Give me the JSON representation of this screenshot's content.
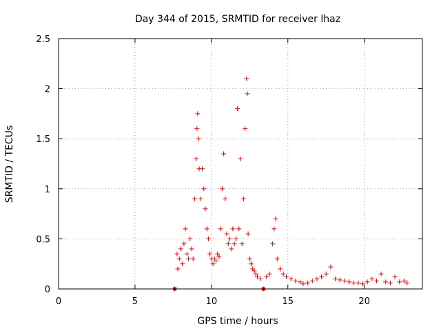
{
  "chart_data": {
    "type": "scatter",
    "title": "Day 344 of 2015, SRMTID for receiver lhaz",
    "xlabel": "GPS time / hours",
    "ylabel": "SRMTID / TECUs",
    "xlim": [
      0,
      23.8
    ],
    "ylim": [
      0,
      2.5
    ],
    "xticks": [
      0,
      5,
      10,
      15,
      20
    ],
    "xtick_labels": [
      "0",
      "5",
      "10",
      "15",
      "20"
    ],
    "yticks": [
      0,
      0.5,
      1,
      1.5,
      2,
      2.5
    ],
    "ytick_labels": [
      "0",
      "0.5",
      "1",
      "1.5",
      "2",
      "2.5"
    ],
    "grid": true,
    "marker": "+",
    "color": "#e00000",
    "series": [
      {
        "name": "SRMTID",
        "x": [
          7.6,
          7.75,
          7.8,
          7.9,
          8.0,
          8.1,
          8.2,
          8.3,
          8.4,
          8.5,
          8.6,
          8.7,
          8.8,
          8.9,
          9.0,
          9.05,
          9.1,
          9.15,
          9.2,
          9.3,
          9.4,
          9.5,
          9.6,
          9.7,
          9.8,
          9.9,
          10.0,
          10.1,
          10.2,
          10.3,
          10.4,
          10.5,
          10.6,
          10.7,
          10.8,
          10.9,
          11.0,
          11.1,
          11.2,
          11.3,
          11.4,
          11.5,
          11.6,
          11.7,
          11.8,
          11.9,
          12.0,
          12.1,
          12.2,
          12.3,
          12.35,
          12.4,
          12.5,
          12.6,
          12.7,
          12.8,
          12.9,
          13.0,
          13.2,
          13.4,
          13.6,
          13.8,
          14.0,
          14.1,
          14.2,
          14.3,
          14.5,
          14.7,
          14.9,
          15.2,
          15.5,
          15.8,
          16.0,
          16.3,
          16.6,
          16.9,
          17.2,
          17.5,
          17.8,
          18.1,
          18.4,
          18.7,
          19.0,
          19.3,
          19.6,
          19.9,
          20.2,
          20.5,
          20.8,
          21.1,
          21.4,
          21.7,
          22.0,
          22.3,
          22.6,
          22.8
        ],
        "y": [
          0.0,
          0.35,
          0.2,
          0.3,
          0.4,
          0.25,
          0.45,
          0.6,
          0.35,
          0.3,
          0.5,
          0.4,
          0.3,
          0.9,
          1.3,
          1.6,
          1.75,
          1.5,
          1.2,
          0.9,
          1.2,
          1.0,
          0.8,
          0.6,
          0.5,
          0.35,
          0.3,
          0.25,
          0.3,
          0.28,
          0.35,
          0.32,
          0.6,
          1.0,
          1.35,
          0.9,
          0.55,
          0.45,
          0.5,
          0.4,
          0.6,
          0.45,
          0.5,
          1.8,
          0.6,
          1.3,
          0.45,
          0.9,
          1.6,
          2.1,
          1.95,
          0.55,
          0.3,
          0.25,
          0.2,
          0.18,
          0.15,
          0.12,
          0.1,
          0.0,
          0.12,
          0.15,
          0.45,
          0.6,
          0.7,
          0.3,
          0.2,
          0.15,
          0.12,
          0.1,
          0.08,
          0.07,
          0.05,
          0.06,
          0.08,
          0.1,
          0.12,
          0.15,
          0.22,
          0.1,
          0.09,
          0.08,
          0.07,
          0.06,
          0.06,
          0.05,
          0.07,
          0.1,
          0.08,
          0.15,
          0.07,
          0.06,
          0.12,
          0.07,
          0.08,
          0.06
        ]
      }
    ],
    "outliers": [
      {
        "x": 7.6,
        "y": 0.0
      },
      {
        "x": 13.4,
        "y": 0.0
      }
    ]
  }
}
